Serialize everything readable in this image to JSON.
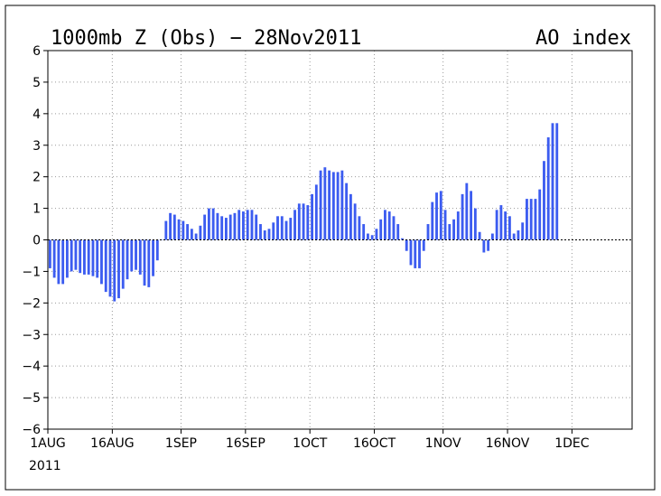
{
  "chart_data": {
    "type": "bar",
    "title": "1000mb Z (Obs) − 28Nov2011",
    "title_right": "AO index",
    "year_label": "2011",
    "ylim": [
      -6,
      6
    ],
    "y_ticks": [
      6,
      5,
      4,
      3,
      2,
      1,
      0,
      -1,
      -2,
      -3,
      -4,
      -5,
      -6
    ],
    "y_tick_labels": [
      "6",
      "5",
      "4",
      "3",
      "2",
      "1",
      "0",
      "−1",
      "−2",
      "−3",
      "−4",
      "−5",
      "−6"
    ],
    "xlim": [
      "2011-08-01",
      "2011-12-15"
    ],
    "x_ticks": [
      {
        "date": "2011-08-01",
        "label": "1AUG"
      },
      {
        "date": "2011-08-16",
        "label": "16AUG"
      },
      {
        "date": "2011-09-01",
        "label": "1SEP"
      },
      {
        "date": "2011-09-16",
        "label": "16SEP"
      },
      {
        "date": "2011-10-01",
        "label": "1OCT"
      },
      {
        "date": "2011-10-16",
        "label": "16OCT"
      },
      {
        "date": "2011-11-01",
        "label": "1NOV"
      },
      {
        "date": "2011-11-16",
        "label": "16NOV"
      },
      {
        "date": "2011-12-01",
        "label": "1DEC"
      }
    ],
    "grid": true,
    "bar_color": "#3c5cf0",
    "series": [
      {
        "start_date": "2011-08-01",
        "step_days": 1,
        "values": [
          -0.9,
          -1.2,
          -1.4,
          -1.4,
          -1.2,
          -1.0,
          -0.95,
          -1.05,
          -1.1,
          -1.1,
          -1.15,
          -1.2,
          -1.4,
          -1.65,
          -1.8,
          -1.95,
          -1.85,
          -1.55,
          -1.25,
          -1.0,
          -0.95,
          -1.1,
          -1.45,
          -1.5,
          -1.15,
          -0.65,
          0.0,
          0.6,
          0.85,
          0.8,
          0.65,
          0.6,
          0.5,
          0.35,
          0.2,
          0.45,
          0.8,
          1.0,
          1.0,
          0.85,
          0.75,
          0.7,
          0.8,
          0.85,
          0.95,
          0.9,
          0.95,
          0.95,
          0.8,
          0.5,
          0.3,
          0.35,
          0.55,
          0.75,
          0.75,
          0.6,
          0.7,
          0.95,
          1.15,
          1.15,
          1.1,
          1.45,
          1.75,
          2.2,
          2.3,
          2.2,
          2.15,
          2.15,
          2.2,
          1.8,
          1.45,
          1.15,
          0.75,
          0.5,
          0.2,
          0.15,
          0.35,
          0.65,
          0.95,
          0.9,
          0.75,
          0.5,
          0.05,
          -0.35,
          -0.8,
          -0.9,
          -0.9,
          -0.35,
          0.5,
          1.2,
          1.5,
          1.55,
          0.95,
          0.5,
          0.65,
          0.9,
          1.45,
          1.8,
          1.55,
          1.0,
          0.25,
          -0.4,
          -0.35,
          0.2,
          0.95,
          1.1,
          0.9,
          0.75,
          0.2,
          0.3,
          0.55,
          1.3,
          1.3,
          1.3,
          1.6,
          2.5,
          3.25,
          3.7,
          3.7
        ]
      }
    ]
  }
}
